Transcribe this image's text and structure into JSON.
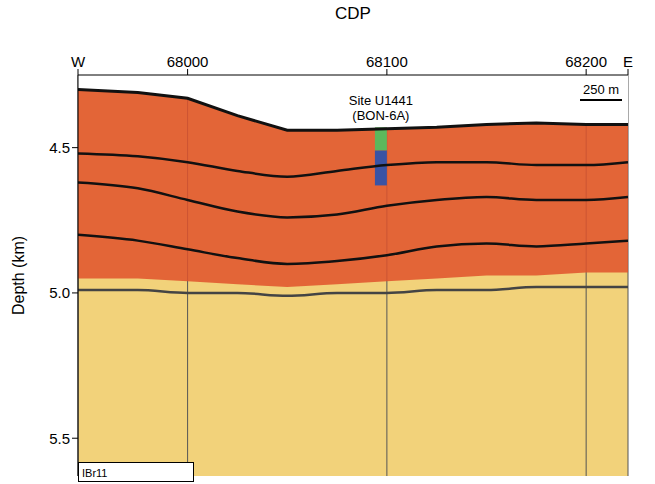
{
  "chart_data": {
    "type": "seismic_section",
    "x_label": "CDP",
    "y_label": "Depth (km)",
    "xlim": [
      67945,
      68221
    ],
    "xticks": [
      {
        "value": 67945,
        "label": "W"
      },
      68000,
      68100,
      68200,
      {
        "value": 68221,
        "label": "E"
      }
    ],
    "ylim": [
      4.25,
      5.63
    ],
    "yticks": [
      4.5,
      {
        "value": 5,
        "label": "5.0"
      },
      5.5
    ],
    "grid": true,
    "background": "#f2d27a",
    "water_color": "#ffffff",
    "x": [
      67945,
      67975,
      68000,
      68025,
      68050,
      68075,
      68100,
      68125,
      68150,
      68175,
      68200,
      68221
    ],
    "seafloor": {
      "color": "#111111",
      "values": [
        4.3,
        4.31,
        4.33,
        4.39,
        4.44,
        4.44,
        4.435,
        4.43,
        4.42,
        4.415,
        4.42,
        4.42
      ]
    },
    "zone": {
      "color": "#e0522b",
      "values": [
        4.95,
        4.95,
        4.96,
        4.97,
        4.98,
        4.97,
        4.96,
        4.95,
        4.94,
        4.94,
        4.93,
        4.93
      ]
    },
    "reflectors": [
      {
        "color": "#111111",
        "values": [
          4.52,
          4.53,
          4.55,
          4.58,
          4.6,
          4.58,
          4.56,
          4.55,
          4.55,
          4.56,
          4.56,
          4.55
        ]
      },
      {
        "color": "#111111",
        "values": [
          4.62,
          4.64,
          4.68,
          4.72,
          4.74,
          4.73,
          4.7,
          4.68,
          4.67,
          4.68,
          4.68,
          4.67
        ]
      },
      {
        "color": "#111111",
        "values": [
          4.8,
          4.82,
          4.85,
          4.88,
          4.9,
          4.89,
          4.87,
          4.84,
          4.83,
          4.84,
          4.83,
          4.82
        ]
      },
      {
        "color": "#444444",
        "values": [
          4.99,
          4.99,
          5.0,
          5.0,
          5.01,
          5.0,
          5.0,
          4.99,
          4.99,
          4.98,
          4.98,
          4.98
        ]
      }
    ],
    "site": {
      "label": "Site U1441",
      "sublabel": "(BON-6A)",
      "x": 68097,
      "segments": [
        {
          "from": 4.43,
          "to": 4.51,
          "color": "#5cb85c"
        },
        {
          "from": 4.51,
          "to": 4.63,
          "color": "#3a53a4"
        }
      ]
    },
    "scale_bar": "250 m",
    "line_label": "IBr11"
  }
}
